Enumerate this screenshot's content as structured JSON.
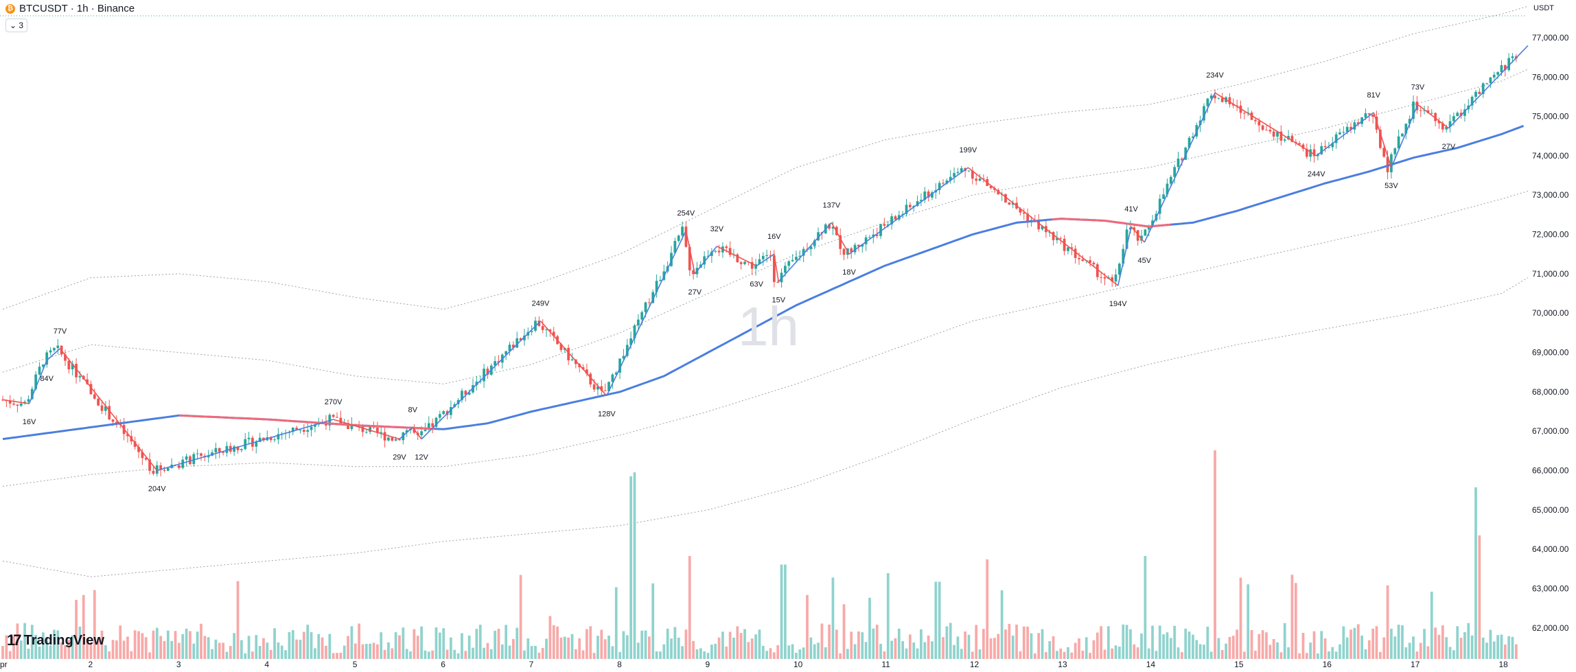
{
  "header": {
    "symbol": "BTCUSDT · 1h · Binance",
    "coin_icon": "bitcoin-icon",
    "indicator_count": "3"
  },
  "watermark": "1h",
  "brand": {
    "name": "TradingView",
    "icon": "tradingview-logo-icon"
  },
  "price_unit": "USDT",
  "colors": {
    "up": "#26a69a",
    "down": "#ef5350",
    "up_vol": "#8fd3cd",
    "down_vol": "#f7a9a8",
    "ma": "#4a7ee0",
    "ma_red": "#ef6a7a",
    "zz_up": "#4a7ee0",
    "zz_down": "#ef5350"
  },
  "chart_data": {
    "type": "candlestick",
    "yaxis": {
      "ticks": [
        62000,
        63000,
        64000,
        65000,
        66000,
        67000,
        68000,
        69000,
        70000,
        71000,
        72000,
        73000,
        74000,
        75000,
        76000,
        77000
      ],
      "tick_labels": [
        "62,000.00",
        "63,000.00",
        "64,000.00",
        "65,000.00",
        "66,000.00",
        "67,000.00",
        "68,000.00",
        "69,000.00",
        "70,000.00",
        "71,000.00",
        "72,000.00",
        "73,000.00",
        "74,000.00",
        "75,000.00",
        "76,000.00",
        "77,000.00"
      ],
      "range": [
        61700,
        77400
      ]
    },
    "xaxis": {
      "ticks": [
        1.0,
        2,
        3,
        4,
        5,
        6,
        7,
        8,
        9,
        10,
        11,
        12,
        13,
        14,
        15,
        16,
        17,
        18
      ],
      "tick_labels": [
        "pr",
        "2",
        "3",
        "4",
        "5",
        "6",
        "7",
        "8",
        "9",
        "10",
        "11",
        "12",
        "13",
        "14",
        "15",
        "16",
        "17",
        "18"
      ],
      "range": [
        1.0,
        18.3
      ]
    },
    "last_price": 77150,
    "zigzag": [
      {
        "x": 1.0,
        "y": 67800
      },
      {
        "x": 1.3,
        "y": 67700,
        "label": "16V"
      },
      {
        "x": 1.5,
        "y": 68800,
        "label": "84V"
      },
      {
        "x": 1.65,
        "y": 69100,
        "label": "77V"
      },
      {
        "x": 2.75,
        "y": 66000,
        "label": "204V"
      },
      {
        "x": 4.75,
        "y": 67300,
        "label": "270V"
      },
      {
        "x": 5.5,
        "y": 66800,
        "label": "29V"
      },
      {
        "x": 5.65,
        "y": 67100,
        "label": "8V"
      },
      {
        "x": 5.75,
        "y": 66800,
        "label": "12V"
      },
      {
        "x": 7.1,
        "y": 69800,
        "label": "249V"
      },
      {
        "x": 7.85,
        "y": 67900,
        "label": "128V"
      },
      {
        "x": 8.75,
        "y": 72100,
        "label": "254V"
      },
      {
        "x": 8.85,
        "y": 71000,
        "label": "27V"
      },
      {
        "x": 9.1,
        "y": 71700,
        "label": "32V"
      },
      {
        "x": 9.55,
        "y": 71200,
        "label": "63V"
      },
      {
        "x": 9.75,
        "y": 71500,
        "label": "16V"
      },
      {
        "x": 9.8,
        "y": 70800,
        "label": "15V"
      },
      {
        "x": 10.4,
        "y": 72300,
        "label": "137V"
      },
      {
        "x": 10.6,
        "y": 71500,
        "label": "18V"
      },
      {
        "x": 11.95,
        "y": 73700,
        "label": "199V"
      },
      {
        "x": 13.65,
        "y": 70700,
        "label": "194V"
      },
      {
        "x": 13.8,
        "y": 72200,
        "label": "41V"
      },
      {
        "x": 13.95,
        "y": 71800,
        "label": "45V"
      },
      {
        "x": 14.75,
        "y": 75600,
        "label": "234V"
      },
      {
        "x": 15.9,
        "y": 74000,
        "label": "244V"
      },
      {
        "x": 16.55,
        "y": 75100,
        "label": "81V"
      },
      {
        "x": 16.75,
        "y": 73700,
        "label": "53V"
      },
      {
        "x": 17.05,
        "y": 75300,
        "label": "73V"
      },
      {
        "x": 17.4,
        "y": 74700,
        "label": "27V"
      },
      {
        "x": 18.3,
        "y": 76800
      }
    ],
    "ma_line": [
      {
        "x": 1.0,
        "y": 66800
      },
      {
        "x": 2.0,
        "y": 67100
      },
      {
        "x": 3.0,
        "y": 67400
      },
      {
        "x": 4.0,
        "y": 67300
      },
      {
        "x": 5.0,
        "y": 67150
      },
      {
        "x": 6.0,
        "y": 67050
      },
      {
        "x": 6.5,
        "y": 67200
      },
      {
        "x": 7.0,
        "y": 67500
      },
      {
        "x": 7.5,
        "y": 67750
      },
      {
        "x": 8.0,
        "y": 68000
      },
      {
        "x": 8.5,
        "y": 68400
      },
      {
        "x": 9.0,
        "y": 69000
      },
      {
        "x": 9.5,
        "y": 69600
      },
      {
        "x": 10.0,
        "y": 70200
      },
      {
        "x": 10.5,
        "y": 70700
      },
      {
        "x": 11.0,
        "y": 71200
      },
      {
        "x": 11.5,
        "y": 71600
      },
      {
        "x": 12.0,
        "y": 72000
      },
      {
        "x": 12.5,
        "y": 72300
      },
      {
        "x": 13.0,
        "y": 72400
      },
      {
        "x": 13.5,
        "y": 72350
      },
      {
        "x": 14.0,
        "y": 72200
      },
      {
        "x": 14.5,
        "y": 72300
      },
      {
        "x": 15.0,
        "y": 72600
      },
      {
        "x": 15.5,
        "y": 72950
      },
      {
        "x": 16.0,
        "y": 73300
      },
      {
        "x": 16.5,
        "y": 73600
      },
      {
        "x": 17.0,
        "y": 73950
      },
      {
        "x": 17.5,
        "y": 74200
      },
      {
        "x": 18.0,
        "y": 74550
      },
      {
        "x": 18.3,
        "y": 74800
      }
    ],
    "ma_red_segments": [
      [
        3.0,
        5.9
      ],
      [
        12.9,
        14.3
      ]
    ],
    "bands_upper_outer": [
      [
        1,
        70100
      ],
      [
        2,
        70900
      ],
      [
        3,
        71000
      ],
      [
        4,
        70800
      ],
      [
        5,
        70400
      ],
      [
        6,
        70100
      ],
      [
        7,
        70700
      ],
      [
        8,
        71500
      ],
      [
        9,
        72600
      ],
      [
        10,
        73700
      ],
      [
        11,
        74400
      ],
      [
        12,
        74800
      ],
      [
        13,
        75100
      ],
      [
        14,
        75300
      ],
      [
        15,
        75800
      ],
      [
        16,
        76400
      ],
      [
        17,
        77100
      ],
      [
        18,
        77600
      ],
      [
        18.3,
        77800
      ]
    ],
    "bands_upper_inner": [
      [
        1,
        68500
      ],
      [
        2,
        69200
      ],
      [
        3,
        69000
      ],
      [
        4,
        68800
      ],
      [
        5,
        68400
      ],
      [
        6,
        68200
      ],
      [
        7,
        68700
      ],
      [
        8,
        69500
      ],
      [
        9,
        70500
      ],
      [
        10,
        71500
      ],
      [
        11,
        72300
      ],
      [
        12,
        73000
      ],
      [
        13,
        73400
      ],
      [
        14,
        73700
      ],
      [
        15,
        74200
      ],
      [
        16,
        74700
      ],
      [
        17,
        75300
      ],
      [
        18,
        75900
      ],
      [
        18.3,
        76200
      ]
    ],
    "bands_lower_inner": [
      [
        1,
        65600
      ],
      [
        2,
        65900
      ],
      [
        3,
        66100
      ],
      [
        4,
        66200
      ],
      [
        5,
        66100
      ],
      [
        6,
        66100
      ],
      [
        7,
        66400
      ],
      [
        8,
        66900
      ],
      [
        9,
        67500
      ],
      [
        10,
        68200
      ],
      [
        11,
        69000
      ],
      [
        12,
        69800
      ],
      [
        13,
        70300
      ],
      [
        14,
        70800
      ],
      [
        15,
        71300
      ],
      [
        16,
        71800
      ],
      [
        17,
        72300
      ],
      [
        18,
        72900
      ],
      [
        18.3,
        73100
      ]
    ],
    "bands_lower_outer": [
      [
        1,
        63700
      ],
      [
        2,
        63300
      ],
      [
        3,
        63500
      ],
      [
        4,
        63700
      ],
      [
        5,
        63900
      ],
      [
        6,
        64200
      ],
      [
        7,
        64400
      ],
      [
        8,
        64600
      ],
      [
        9,
        65000
      ],
      [
        10,
        65600
      ],
      [
        11,
        66400
      ],
      [
        12,
        67300
      ],
      [
        13,
        68100
      ],
      [
        14,
        68700
      ],
      [
        15,
        69200
      ],
      [
        16,
        69600
      ],
      [
        17,
        70000
      ],
      [
        18,
        70500
      ],
      [
        18.3,
        70900
      ]
    ],
    "volume_peaks": [
      [
        7.2,
        0.25
      ],
      [
        8.15,
        0.82
      ],
      [
        8.8,
        0.6
      ],
      [
        9.85,
        0.55
      ],
      [
        11.05,
        0.5
      ],
      [
        11.6,
        0.45
      ],
      [
        13.95,
        0.6
      ],
      [
        14.75,
        0.9
      ],
      [
        17.7,
        1.0
      ],
      [
        17.75,
        0.72
      ]
    ]
  }
}
